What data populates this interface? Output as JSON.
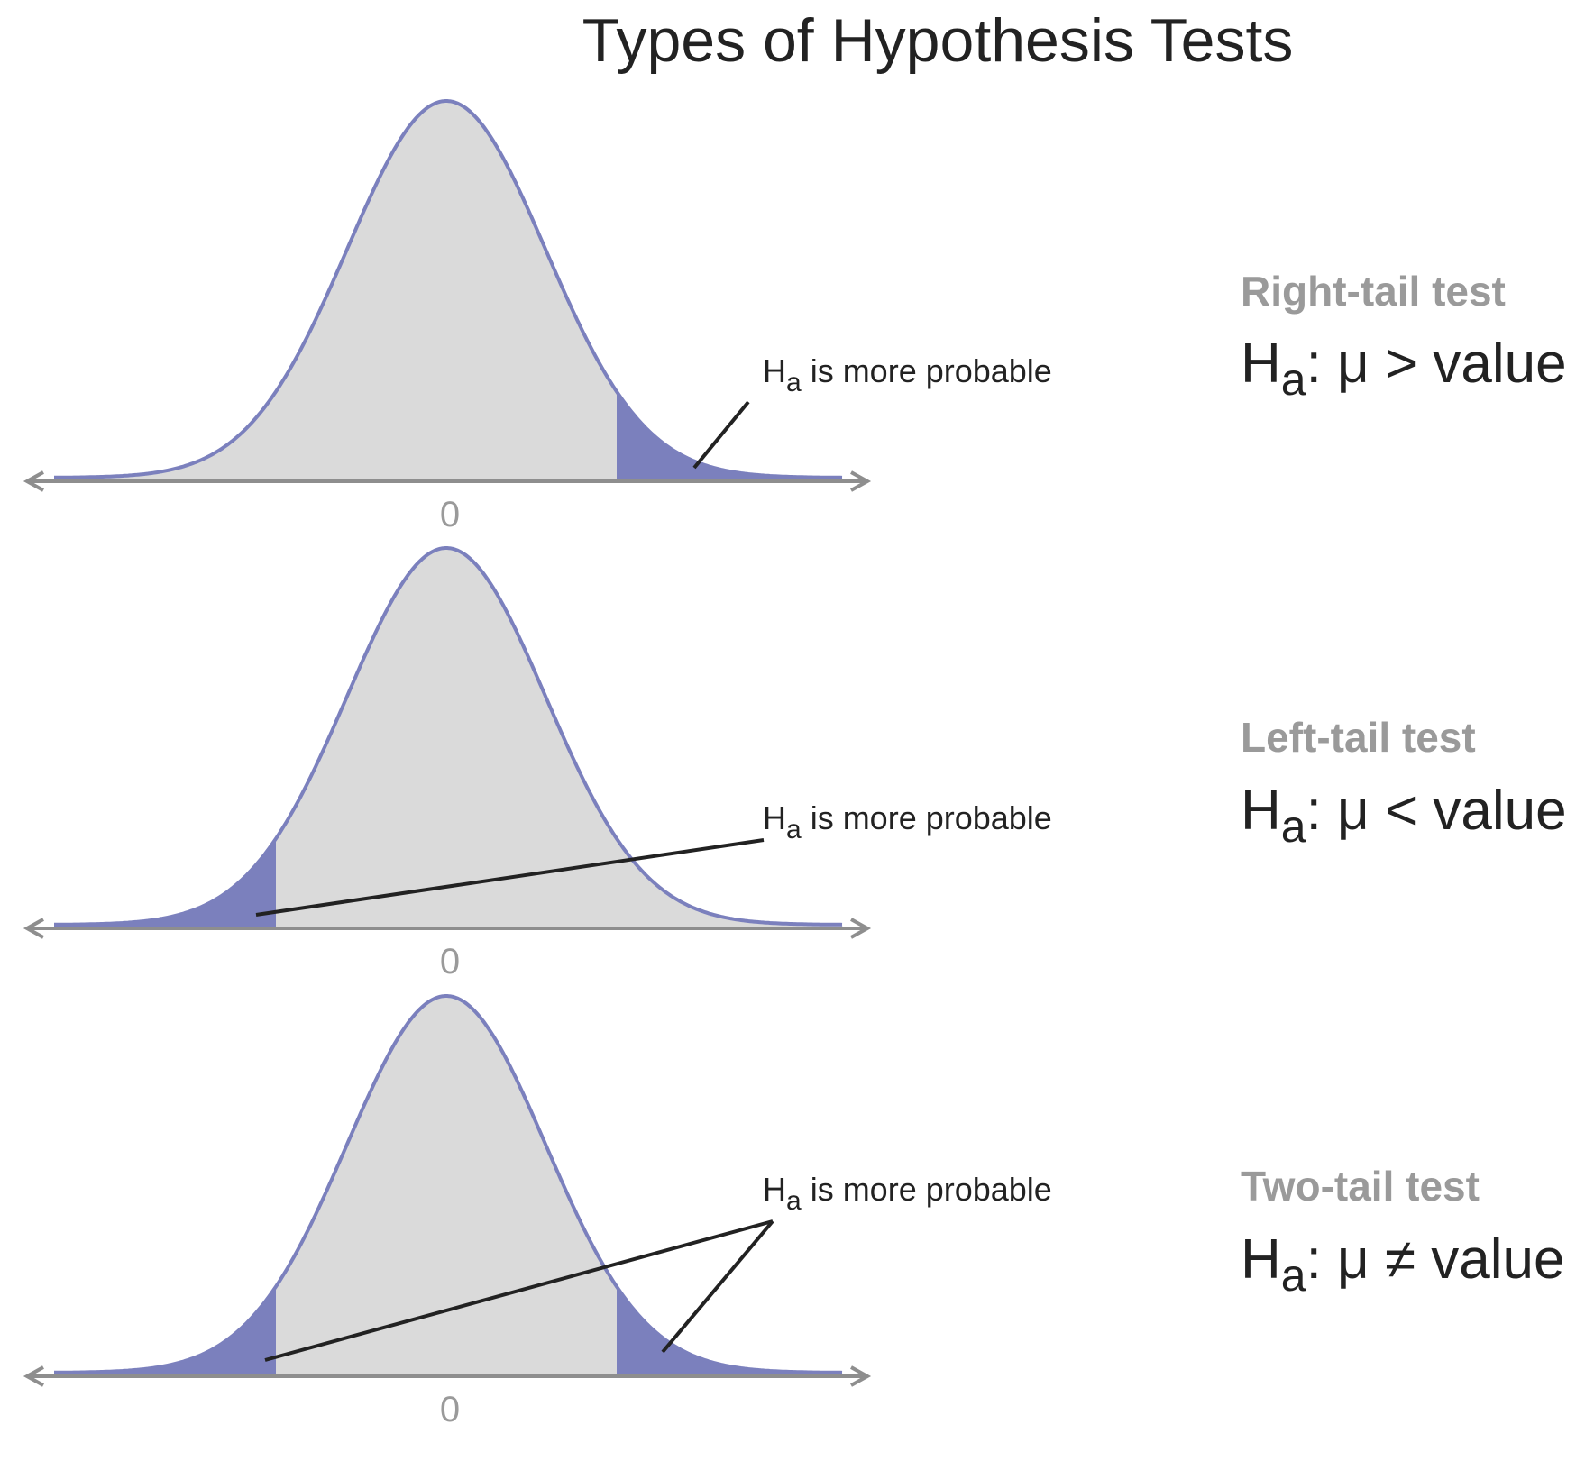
{
  "title": "Types of Hypothesis Tests",
  "colors": {
    "curve_stroke": "#7b80bd",
    "curve_fill": "#dadada",
    "tail_fill": "#7b80bd",
    "axis": "#8e8e8e",
    "pointer": "#222222",
    "test_name": "#9a9a9a",
    "text": "#222222"
  },
  "panels": [
    {
      "id": "right-tail",
      "tails": [
        "right"
      ],
      "axis_label": "0",
      "annotation": {
        "symbol": "H",
        "subscript": "a",
        "text": " is more probable"
      },
      "test_name": "Right-tail test",
      "formula": {
        "symbol": "H",
        "subscript": "a",
        "rest": ": μ > value"
      }
    },
    {
      "id": "left-tail",
      "tails": [
        "left"
      ],
      "axis_label": "0",
      "annotation": {
        "symbol": "H",
        "subscript": "a",
        "text": " is more probable"
      },
      "test_name": "Left-tail test",
      "formula": {
        "symbol": "H",
        "subscript": "a",
        "rest": ": μ < value"
      }
    },
    {
      "id": "two-tail",
      "tails": [
        "left",
        "right"
      ],
      "axis_label": "0",
      "annotation": {
        "symbol": "H",
        "subscript": "a",
        "text": " is more probable"
      },
      "test_name": "Two-tail test",
      "formula": {
        "symbol": "H",
        "subscript": "a",
        "rest": ": μ ≠ value"
      }
    }
  ]
}
